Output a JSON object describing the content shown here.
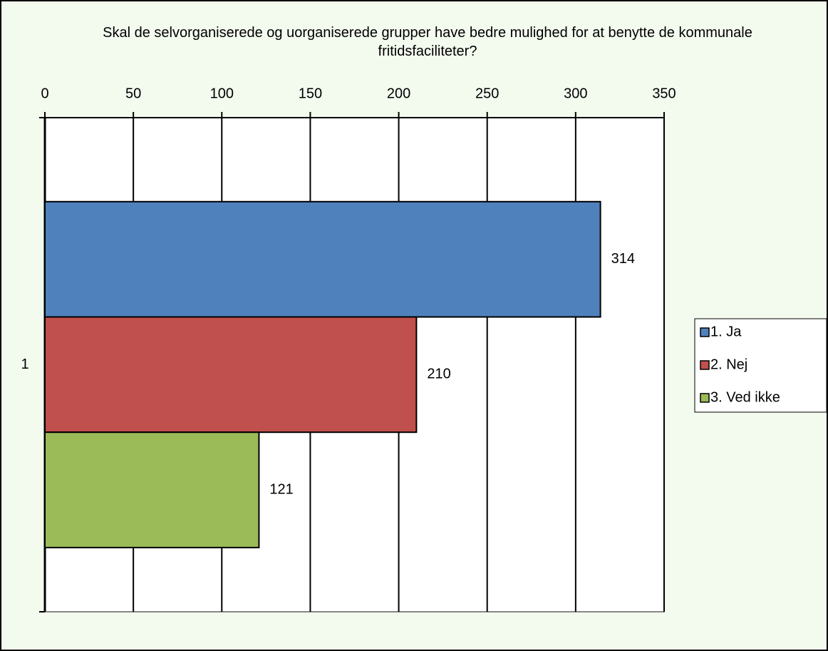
{
  "chart_data": {
    "type": "bar",
    "orientation": "horizontal",
    "title": "Skal de selvorganiserede og uorganiserede grupper have bedre mulighed for at benytte de kommunale fritidsfaciliteter?",
    "categories": [
      "1"
    ],
    "series": [
      {
        "name": "1. Ja",
        "color": "#4f81bd",
        "values": [
          314
        ]
      },
      {
        "name": "2. Nej",
        "color": "#c0504d",
        "values": [
          210
        ]
      },
      {
        "name": "3. Ved ikke",
        "color": "#9bbb59",
        "values": [
          121
        ]
      }
    ],
    "xlim": [
      0,
      350
    ],
    "xticks": [
      0,
      50,
      100,
      150,
      200,
      250,
      300,
      350
    ],
    "grid": true,
    "legend": "right"
  }
}
